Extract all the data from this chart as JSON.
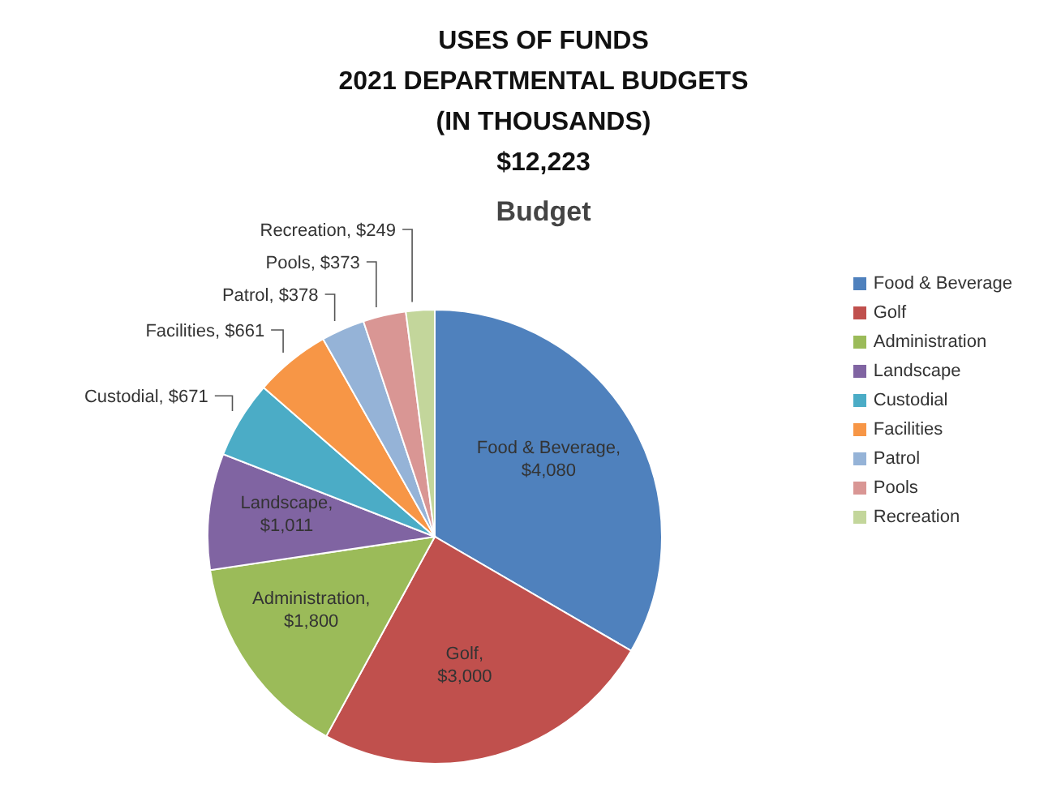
{
  "chart_data": {
    "type": "pie",
    "title": "USES OF FUNDS\n2021 DEPARTMENTAL BUDGETS\n(IN THOUSANDS)\n$12,223",
    "subtitle": "Budget",
    "categories": [
      "Food & Beverage",
      "Golf",
      "Administration",
      "Landscape",
      "Custodial",
      "Facilities",
      "Patrol",
      "Pools",
      "Recreation"
    ],
    "values": [
      4080,
      3000,
      1800,
      1011,
      671,
      661,
      378,
      373,
      249
    ],
    "colors": [
      "#4f81bd",
      "#c0504d",
      "#9bbb59",
      "#8064a2",
      "#4bacc6",
      "#f79646",
      "#95b3d7",
      "#d99694",
      "#c3d69b"
    ],
    "value_labels": [
      "Food & Beverage, $4,080",
      "Golf, $3,000",
      "Administration, $1,800",
      "Landscape, $1,011",
      "Custodial, $671",
      "Facilities, $661",
      "Patrol, $378",
      "Pools, $373",
      "Recreation, $249"
    ],
    "legend": "right"
  }
}
